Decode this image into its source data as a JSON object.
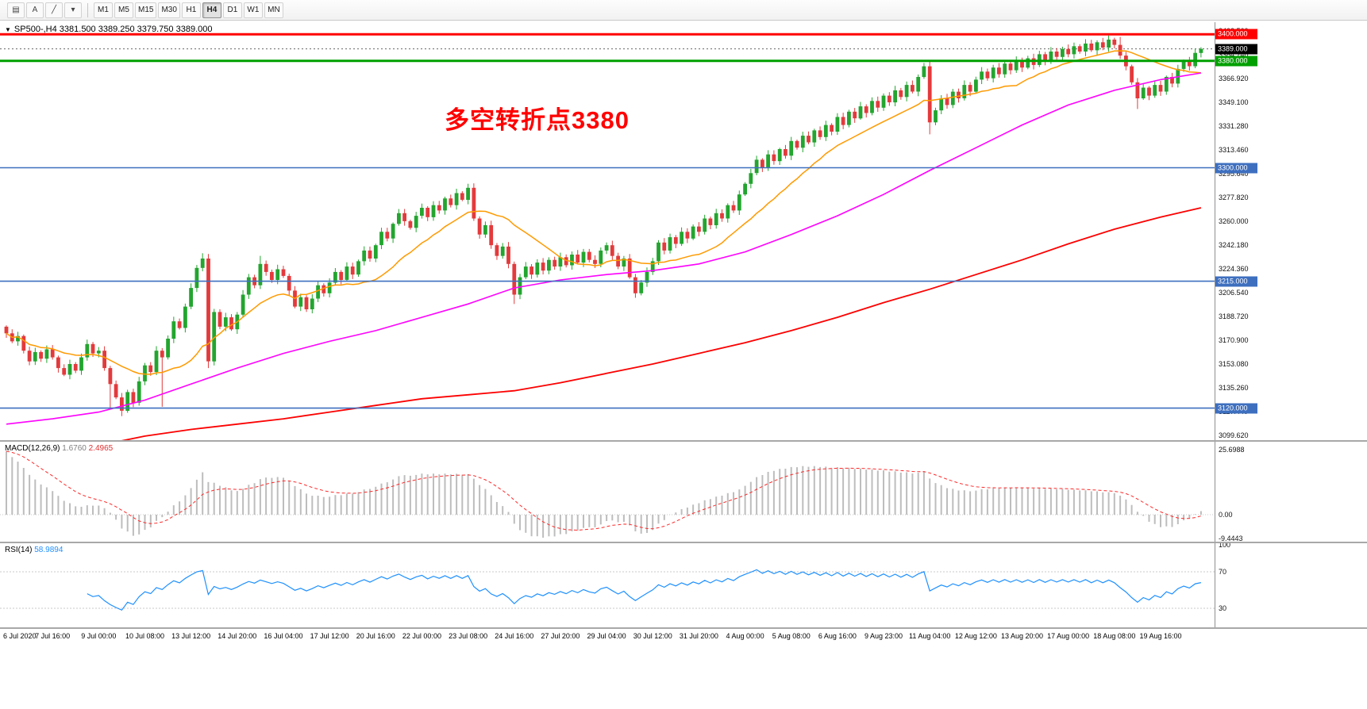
{
  "toolbar": {
    "left_buttons": [
      {
        "name": "chart-templates-icon",
        "glyph": "▤"
      },
      {
        "name": "text-annotation-icon",
        "glyph": "A"
      },
      {
        "name": "trendline-tool-icon",
        "glyph": "╱"
      },
      {
        "name": "drawing-tools-dropdown-icon",
        "glyph": "▾"
      }
    ],
    "timeframes": [
      "M1",
      "M5",
      "M15",
      "M30",
      "H1",
      "H4",
      "D1",
      "W1",
      "MN"
    ],
    "active_timeframe": "H4"
  },
  "symbol_bar": {
    "collapse_icon": "▼",
    "display": "SP500-,H4  3381.500 3389.250 3379.750 3389.000"
  },
  "macd": {
    "title": "MACD(12,26,9)",
    "main_value": "1.6760",
    "signal_value": "2.4965",
    "axis_labels": [
      {
        "y": 10,
        "t": "25.6988"
      },
      {
        "y": 92,
        "t": "0.00"
      },
      {
        "y": 122,
        "t": "-9.4443"
      }
    ]
  },
  "rsi": {
    "title": "RSI(14)",
    "value": "58.9894",
    "axis_labels": [
      {
        "y": 2,
        "t": "100"
      },
      {
        "y": 36,
        "t": "70"
      },
      {
        "y": 82,
        "t": "30"
      }
    ]
  },
  "chart_data": {
    "type": "candlestick",
    "symbol": "SP500-",
    "timeframe": "H4",
    "current_ohlc": {
      "open": 3381.5,
      "high": 3389.25,
      "low": 3379.75,
      "close": 3389.0
    },
    "annotation": {
      "text": "多空转折点3380",
      "color": "#FF0000"
    },
    "price_axis_top": 3409,
    "price_axis_bottom": 3096,
    "y_ticks": [
      {
        "p": 3402.56,
        "t": "3402.560"
      },
      {
        "p": 3384.74,
        "t": "3384.740"
      },
      {
        "p": 3366.92,
        "t": "3366.920"
      },
      {
        "p": 3349.1,
        "t": "3349.100"
      },
      {
        "p": 3331.28,
        "t": "3331.280"
      },
      {
        "p": 3313.46,
        "t": "3313.460"
      },
      {
        "p": 3295.64,
        "t": "3295.640"
      },
      {
        "p": 3277.82,
        "t": "3277.820"
      },
      {
        "p": 3260.0,
        "t": "3260.000"
      },
      {
        "p": 3242.18,
        "t": "3242.180"
      },
      {
        "p": 3224.36,
        "t": "3224.360"
      },
      {
        "p": 3206.54,
        "t": "3206.540"
      },
      {
        "p": 3188.72,
        "t": "3188.720"
      },
      {
        "p": 3170.9,
        "t": "3170.900"
      },
      {
        "p": 3153.08,
        "t": "3153.080"
      },
      {
        "p": 3135.26,
        "t": "3135.260"
      },
      {
        "p": 3117.44,
        "t": "3117.440"
      },
      {
        "p": 3099.62,
        "t": "3099.620"
      }
    ],
    "x_labels": [
      "6 Jul 2020",
      "7 Jul 16:00",
      "9 Jul 00:00",
      "10 Jul 08:00",
      "13 Jul 12:00",
      "14 Jul 20:00",
      "16 Jul 04:00",
      "17 Jul 12:00",
      "20 Jul 16:00",
      "22 Jul 00:00",
      "23 Jul 08:00",
      "24 Jul 16:00",
      "27 Jul 20:00",
      "29 Jul 04:00",
      "30 Jul 12:00",
      "31 Jul 20:00",
      "4 Aug 00:00",
      "5 Aug 08:00",
      "6 Aug 16:00",
      "9 Aug 23:00",
      "11 Aug 04:00",
      "12 Aug 12:00",
      "13 Aug 20:00",
      "17 Aug 00:00",
      "18 Aug 08:00",
      "19 Aug 16:00"
    ],
    "bars_per_x_label": 8,
    "first_open": 3181,
    "closes": [
      3176,
      3170,
      3174,
      3163,
      3155,
      3162,
      3157,
      3164,
      3158,
      3150,
      3145,
      3153,
      3148,
      3158,
      3168,
      3161,
      3163,
      3150,
      3138,
      3128,
      3118,
      3132,
      3124,
      3140,
      3152,
      3147,
      3163,
      3158,
      3172,
      3185,
      3180,
      3196,
      3210,
      3225,
      3232,
      3155,
      3192,
      3181,
      3188,
      3179,
      3190,
      3205,
      3218,
      3212,
      3228,
      3222,
      3216,
      3224,
      3219,
      3208,
      3196,
      3203,
      3194,
      3202,
      3212,
      3206,
      3214,
      3222,
      3216,
      3226,
      3220,
      3230,
      3238,
      3232,
      3242,
      3252,
      3247,
      3258,
      3266,
      3260,
      3255,
      3264,
      3270,
      3263,
      3272,
      3268,
      3277,
      3272,
      3281,
      3276,
      3285,
      3262,
      3250,
      3257,
      3242,
      3234,
      3241,
      3228,
      3205,
      3218,
      3226,
      3220,
      3229,
      3223,
      3231,
      3226,
      3233,
      3227,
      3235,
      3229,
      3237,
      3231,
      3228,
      3238,
      3242,
      3234,
      3226,
      3232,
      3218,
      3206,
      3214,
      3222,
      3230,
      3244,
      3238,
      3248,
      3243,
      3252,
      3247,
      3256,
      3252,
      3262,
      3257,
      3266,
      3262,
      3272,
      3268,
      3280,
      3288,
      3296,
      3306,
      3300,
      3310,
      3305,
      3314,
      3309,
      3320,
      3315,
      3324,
      3319,
      3328,
      3323,
      3332,
      3327,
      3338,
      3332,
      3342,
      3337,
      3346,
      3341,
      3350,
      3345,
      3354,
      3349,
      3358,
      3353,
      3362,
      3357,
      3368,
      3376,
      3334,
      3343,
      3352,
      3347,
      3357,
      3352,
      3362,
      3357,
      3366,
      3372,
      3367,
      3375,
      3370,
      3378,
      3373,
      3380,
      3375,
      3382,
      3377,
      3385,
      3380,
      3387,
      3383,
      3389,
      3385,
      3391,
      3387,
      3393,
      3388,
      3394,
      3390,
      3396,
      3392,
      3384,
      3376,
      3364,
      3352,
      3360,
      3354,
      3362,
      3357,
      3368,
      3363,
      3374,
      3380,
      3376,
      3386,
      3389
    ],
    "wick_overrides": {
      "18": {
        "low": 3120
      },
      "20": {
        "low": 3114
      },
      "27": {
        "low": 3121
      },
      "34": {
        "high": 3236
      },
      "35": {
        "low": 3150
      },
      "44": {
        "high": 3234
      },
      "80": {
        "high": 3288
      },
      "88": {
        "low": 3198
      },
      "160": {
        "low": 3325
      },
      "191": {
        "high": 3399
      },
      "193": {
        "high": 3398
      },
      "196": {
        "low": 3344
      }
    },
    "colors": {
      "up": "#23a52f",
      "down": "#e33a3c"
    },
    "overlays": {
      "fast": {
        "type": "sma",
        "window": 16,
        "color": "#ff9a00"
      },
      "mid": {
        "type": "ma",
        "color": "#ff00ff",
        "anchors": [
          [
            0,
            3108
          ],
          [
            8,
            3112
          ],
          [
            16,
            3117
          ],
          [
            24,
            3126
          ],
          [
            32,
            3138
          ],
          [
            40,
            3150
          ],
          [
            48,
            3161
          ],
          [
            56,
            3170
          ],
          [
            64,
            3178
          ],
          [
            72,
            3188
          ],
          [
            80,
            3198
          ],
          [
            88,
            3210
          ],
          [
            96,
            3216
          ],
          [
            104,
            3220
          ],
          [
            112,
            3223
          ],
          [
            120,
            3228
          ],
          [
            128,
            3237
          ],
          [
            136,
            3250
          ],
          [
            144,
            3264
          ],
          [
            152,
            3280
          ],
          [
            160,
            3298
          ],
          [
            168,
            3315
          ],
          [
            176,
            3332
          ],
          [
            184,
            3347
          ],
          [
            192,
            3358
          ],
          [
            200,
            3366
          ],
          [
            207,
            3371
          ]
        ]
      },
      "slow": {
        "type": "ma",
        "color": "#ff0000",
        "anchors": [
          [
            0,
            3072
          ],
          [
            8,
            3082
          ],
          [
            16,
            3092
          ],
          [
            24,
            3099
          ],
          [
            32,
            3104
          ],
          [
            40,
            3108
          ],
          [
            48,
            3112
          ],
          [
            56,
            3117
          ],
          [
            64,
            3122
          ],
          [
            72,
            3127
          ],
          [
            80,
            3130
          ],
          [
            88,
            3133
          ],
          [
            96,
            3139
          ],
          [
            104,
            3146
          ],
          [
            112,
            3153
          ],
          [
            120,
            3161
          ],
          [
            128,
            3169
          ],
          [
            136,
            3178
          ],
          [
            144,
            3188
          ],
          [
            152,
            3199
          ],
          [
            160,
            3209
          ],
          [
            168,
            3220
          ],
          [
            176,
            3231
          ],
          [
            184,
            3243
          ],
          [
            192,
            3254
          ],
          [
            200,
            3263
          ],
          [
            207,
            3270
          ]
        ]
      }
    },
    "horizontal_levels": [
      {
        "price": 3400.0,
        "label": "3400.000",
        "color": "#ff0000",
        "line_width": 3
      },
      {
        "price": 3380.0,
        "label": "3380.000",
        "color": "#00a000",
        "line_width": 3
      },
      {
        "price": 3300.0,
        "label": "3300.000",
        "color": "#3e6fbf",
        "line_width": 1.6
      },
      {
        "price": 3215.0,
        "label": "3215.000",
        "color": "#3e6fbf",
        "line_width": 1.6
      },
      {
        "price": 3120.0,
        "label": "3120.000",
        "color": "#3e6fbf",
        "line_width": 1.6
      }
    ],
    "current_price": {
      "price": 3389.0,
      "label": "3389.000",
      "badge_bg": "#000000"
    },
    "macd_left_seed": 25.7
  }
}
